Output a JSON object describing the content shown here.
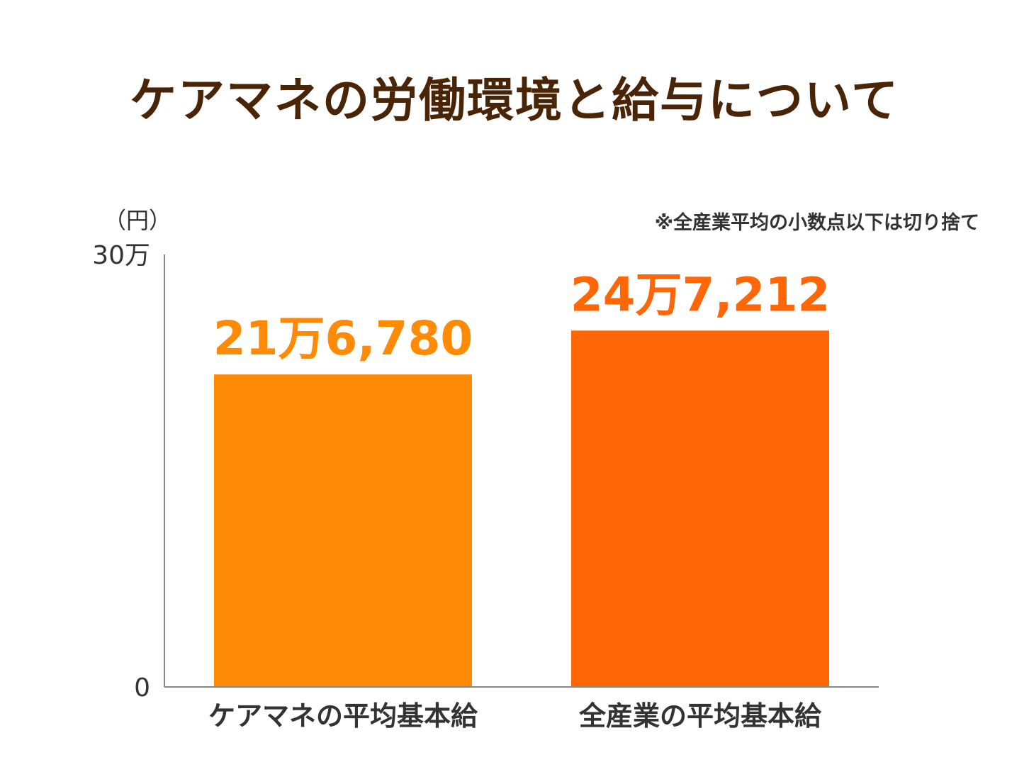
{
  "title": "ケアマネの労働環境と給与について",
  "note": "※全産業平均の小数点以下は切り捨て",
  "colors": {
    "title": "#4a2406",
    "bar1": "#ff8a05",
    "bar2": "#ff6605",
    "axis": "#888888"
  },
  "chart_data": {
    "type": "bar",
    "categories": [
      "ケアマネの平均基本給",
      "全産業の平均基本給"
    ],
    "values": [
      216780,
      247212
    ],
    "value_labels": [
      "21万6,780",
      "24万7,212"
    ],
    "ylabel": "（円）",
    "ylim": [
      0,
      300000
    ],
    "yticks": [
      {
        "value": 0,
        "label": "0"
      },
      {
        "value": 300000,
        "label": "30万"
      }
    ],
    "grid": false,
    "legend": "none"
  }
}
